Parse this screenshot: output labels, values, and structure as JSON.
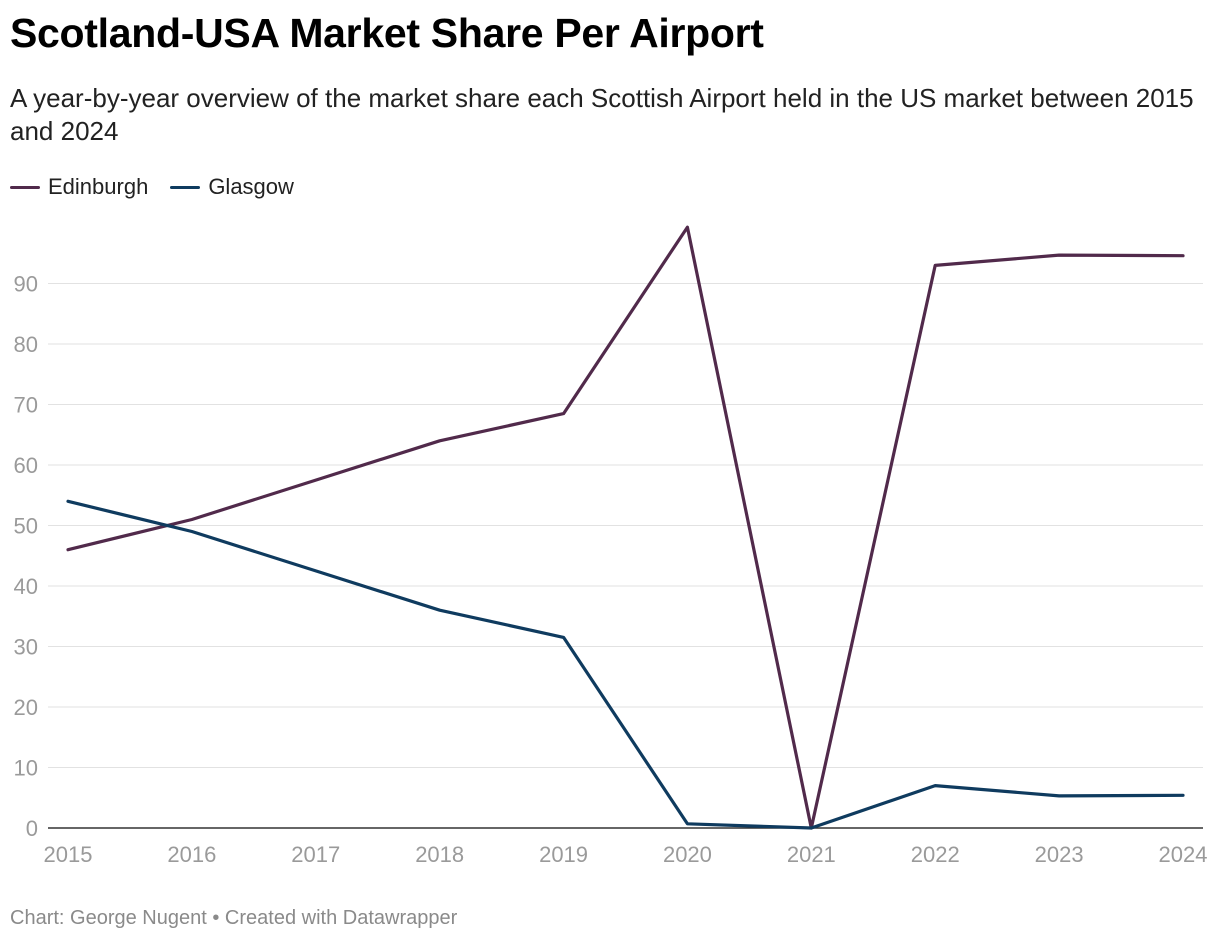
{
  "title": "Scotland-USA Market Share Per Airport",
  "subtitle": "A year-by-year overview of the market share each Scottish Airport held in the US market between 2015 and 2024",
  "footer": {
    "source": "Chart: George Nugent",
    "separator": "•",
    "credit": "Created with Datawrapper"
  },
  "chart_data": {
    "type": "line",
    "title": "Scotland-USA Market Share Per Airport",
    "xlabel": "",
    "ylabel": "",
    "x": [
      "2015",
      "2016",
      "2017",
      "2018",
      "2019",
      "2020",
      "2021",
      "2022",
      "2023",
      "2024"
    ],
    "yticks": [
      0,
      10,
      20,
      30,
      40,
      50,
      60,
      70,
      80,
      90
    ],
    "ylim": [
      0,
      100
    ],
    "grid": true,
    "legend": "top-left",
    "series": [
      {
        "name": "Edinburgh",
        "color": "#512a4b",
        "values": [
          46,
          51,
          57.5,
          64,
          68.5,
          99.3,
          0,
          93,
          94.7,
          94.6
        ]
      },
      {
        "name": "Glasgow",
        "color": "#0f3b5f",
        "values": [
          54,
          49,
          42.5,
          36,
          31.5,
          0.7,
          0,
          7,
          5.3,
          5.4
        ]
      }
    ]
  }
}
